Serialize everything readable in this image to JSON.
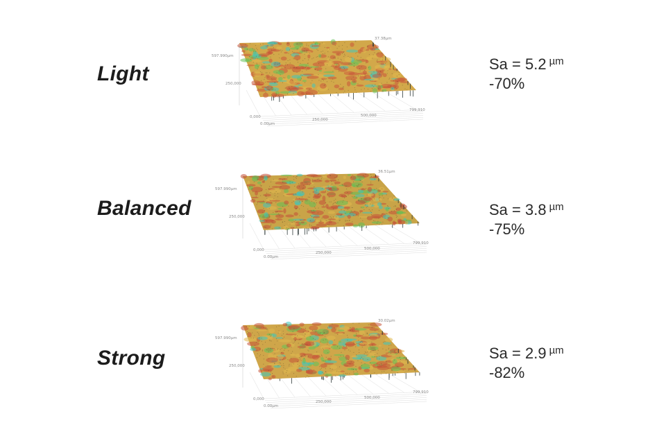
{
  "samples": [
    {
      "label": "Light",
      "sa_text": "Sa = 5.2",
      "unit": "µm",
      "reduction": "-70%",
      "axis": {
        "z_top": "37.38µm",
        "y_top": "597.990µm",
        "y_mid": "250,000",
        "y_zero": "0,000",
        "x_zero": "0.00µm",
        "x_mid": "250,000",
        "x_mid2": "500,000",
        "x_end": "799,910"
      },
      "palette": {
        "base": "#d2a84a",
        "red": "#c8553a",
        "green": "#64c25a",
        "cyan": "#3fc7c0"
      }
    },
    {
      "label": "Balanced",
      "sa_text": "Sa = 3.8",
      "unit": "µm",
      "reduction": "-75%",
      "axis": {
        "z_top": "36.51µm",
        "y_top": "597.990µm",
        "y_mid": "250,000",
        "y_zero": "0,000",
        "x_zero": "0.00µm",
        "x_mid": "250,000",
        "x_mid2": "500,000",
        "x_end": "799,910"
      },
      "palette": {
        "base": "#c9a448",
        "red": "#c24f38",
        "green": "#5fbf55",
        "cyan": "#3cc4bd"
      }
    },
    {
      "label": "Strong",
      "sa_text": "Sa = 2.9",
      "unit": "µm",
      "reduction": "-82%",
      "axis": {
        "z_top": "30.02µm",
        "y_top": "597.990µm",
        "y_mid": "250,000",
        "y_zero": "0,000",
        "x_zero": "0.00µm",
        "x_mid": "250,000",
        "x_mid2": "500,000",
        "x_end": "799,910"
      },
      "palette": {
        "base": "#cfa64a",
        "red": "#c75438",
        "green": "#62c358",
        "cyan": "#3dc6bf"
      }
    }
  ]
}
